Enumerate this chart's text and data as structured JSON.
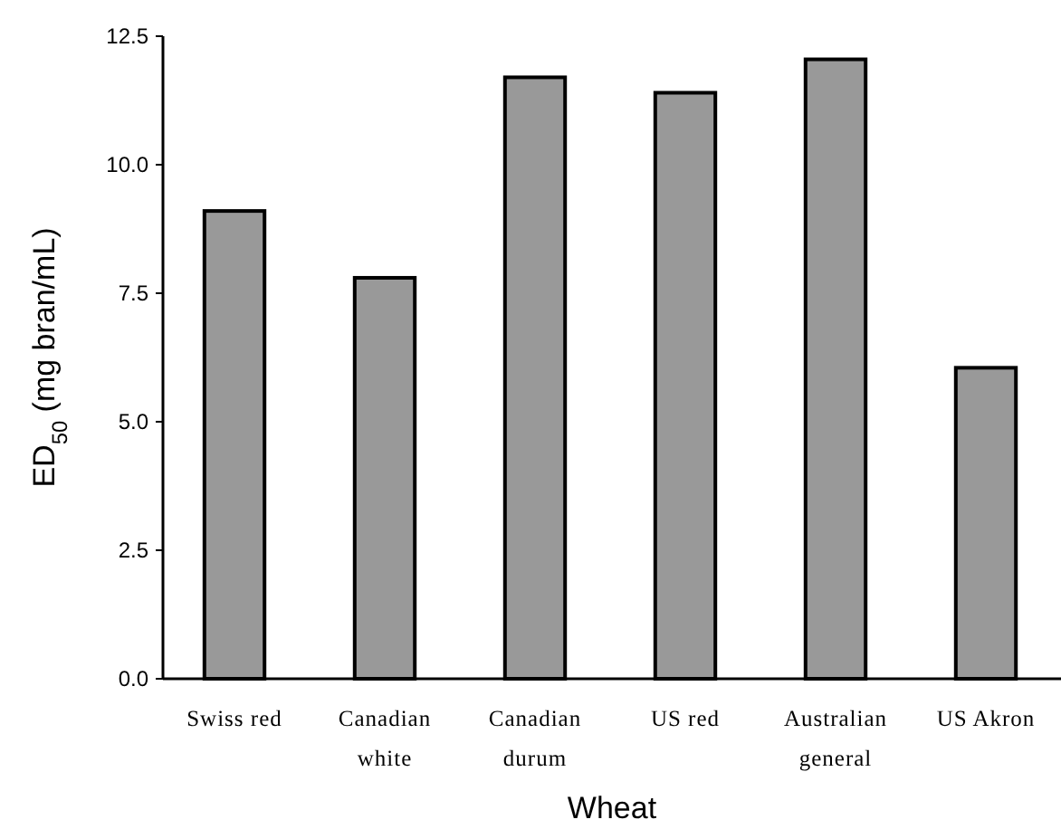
{
  "chart_data": {
    "type": "bar",
    "xlabel": "Wheat",
    "ylabel": "ED$_{50}$ (mg bran/mL)",
    "categories": [
      "Swiss red",
      "Canadian white",
      "Canadian durum",
      "US red",
      "Australian general",
      "US Akron"
    ],
    "values": [
      9.1,
      7.8,
      11.7,
      11.4,
      12.05,
      6.05
    ],
    "color": "#999999",
    "ylim": [
      0,
      12.5
    ],
    "yticks": [
      {
        "value": 0,
        "label": "0.0"
      },
      {
        "value": 2.5,
        "label": "2.5"
      },
      {
        "value": 5,
        "label": "5.0"
      },
      {
        "value": 7.5,
        "label": "7.5"
      },
      {
        "value": 10,
        "label": "10.0"
      },
      {
        "value": 12.5,
        "label": "12.5"
      }
    ]
  }
}
